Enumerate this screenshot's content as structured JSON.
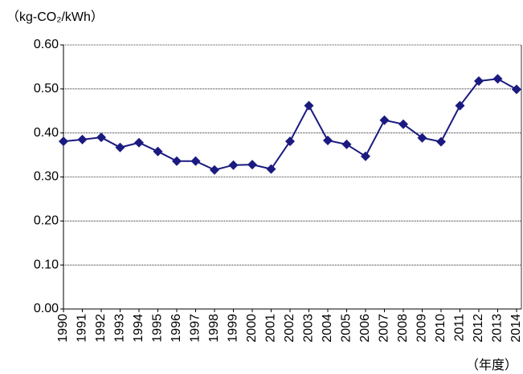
{
  "chart_data": {
    "type": "line",
    "y_label": "（kg-CO₂/kWh）",
    "x_label": "（年度）",
    "categories": [
      "1990",
      "1991",
      "1992",
      "1993",
      "1994",
      "1995",
      "1996",
      "1997",
      "1998",
      "1999",
      "2000",
      "2001",
      "2002",
      "2003",
      "2004",
      "2005",
      "2006",
      "2007",
      "2008",
      "2009",
      "2010",
      "2011",
      "2012",
      "2013",
      "2014"
    ],
    "series": [
      {
        "color": "#1a1a80",
        "values": [
          0.381,
          0.385,
          0.39,
          0.367,
          0.378,
          0.358,
          0.336,
          0.336,
          0.316,
          0.327,
          0.328,
          0.318,
          0.381,
          0.462,
          0.383,
          0.374,
          0.347,
          0.429,
          0.42,
          0.389,
          0.38,
          0.462,
          0.518,
          0.523,
          0.499
        ]
      }
    ],
    "ylim": [
      0,
      0.6
    ],
    "yticks": [
      {
        "value": 0,
        "label": "0.00"
      },
      {
        "value": 0.1,
        "label": "0.10"
      },
      {
        "value": 0.2,
        "label": "0.20"
      },
      {
        "value": 0.3,
        "label": "0.30"
      },
      {
        "value": 0.4,
        "label": "0.40"
      },
      {
        "value": 0.5,
        "label": "0.50"
      },
      {
        "value": 0.6,
        "label": "0.60"
      }
    ],
    "grid": true
  }
}
